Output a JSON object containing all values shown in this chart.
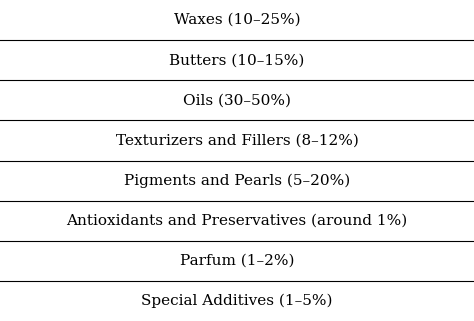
{
  "rows": [
    "Waxes (10–25%)",
    "Butters (10–15%)",
    "Oils (30–50%)",
    "Texturizers and Fillers (8–12%)",
    "Pigments and Pearls (5–20%)",
    "Antioxidants and Preservatives (around 1%)",
    "Parfum (1–2%)",
    "Special Additives (1–5%)"
  ],
  "background_color": "#ffffff",
  "text_color": "#000000",
  "line_color": "#000000",
  "font_size": 11.0,
  "font_family": "serif"
}
